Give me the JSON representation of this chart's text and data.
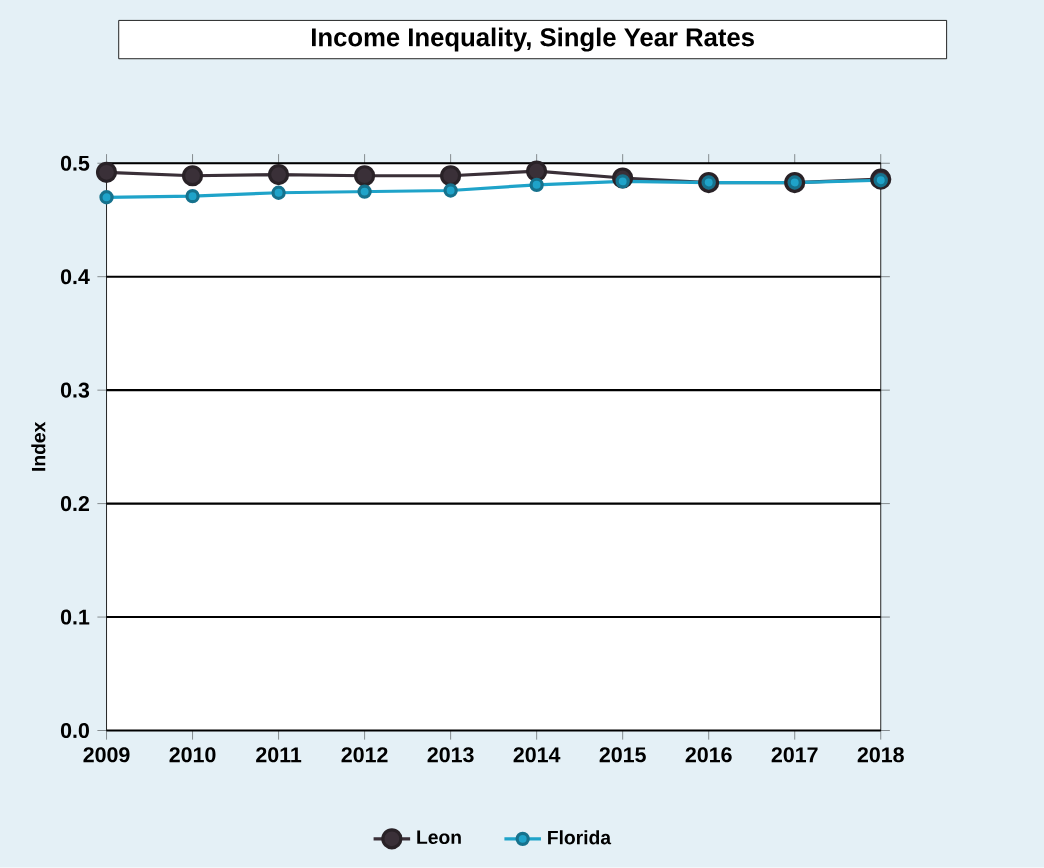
{
  "chart_data": {
    "type": "line",
    "title": "Income Inequality, Single Year Rates",
    "ylabel": "Index",
    "categories": [
      "2009",
      "2010",
      "2011",
      "2012",
      "2013",
      "2014",
      "2015",
      "2016",
      "2017",
      "2018"
    ],
    "series": [
      {
        "name": "Leon",
        "color": "#3a3038",
        "values": [
          0.492,
          0.489,
          0.49,
          0.489,
          0.489,
          0.493,
          0.487,
          0.483,
          0.483,
          0.486
        ]
      },
      {
        "name": "Florida",
        "color": "#1fa3c9",
        "values": [
          0.47,
          0.471,
          0.474,
          0.475,
          0.476,
          0.481,
          0.484,
          0.483,
          0.483,
          0.485
        ]
      }
    ],
    "ylim": [
      0,
      0.5
    ],
    "yticks": [
      {
        "value": 0,
        "label": "0.0"
      },
      0.1,
      0.2,
      0.3,
      0.4,
      0.5
    ],
    "grid": "y",
    "legend": "bottom",
    "marker": "circle",
    "line_style": "solid"
  }
}
